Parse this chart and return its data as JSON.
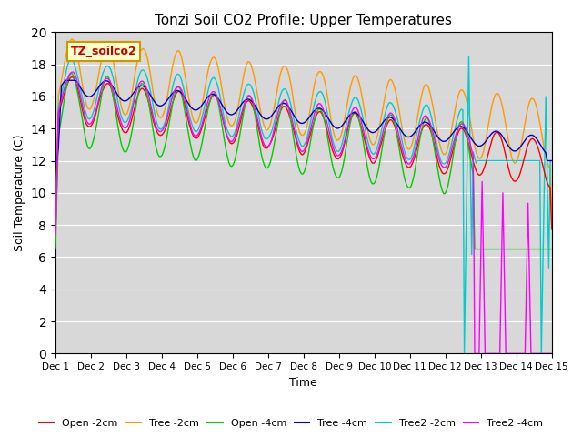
{
  "title": "Tonzi Soil CO2 Profile: Upper Temperatures",
  "ylabel": "Soil Temperature (C)",
  "xlabel": "Time",
  "ylim": [
    0,
    20
  ],
  "plot_bg_color": "#d8d8d8",
  "annotation_text": "TZ_soilco2",
  "annotation_bg": "#ffffcc",
  "annotation_border": "#cc9900",
  "series": {
    "Open -2cm": {
      "color": "#ff0000",
      "lw": 1.0
    },
    "Tree -2cm": {
      "color": "#ff9900",
      "lw": 1.0
    },
    "Open -4cm": {
      "color": "#00cc00",
      "lw": 1.0
    },
    "Tree -4cm": {
      "color": "#0000cc",
      "lw": 1.0
    },
    "Tree2 -2cm": {
      "color": "#00cccc",
      "lw": 1.0
    },
    "Tree2 -4cm": {
      "color": "#ff00ff",
      "lw": 1.0
    }
  },
  "xtick_labels": [
    "Dec 1",
    "Dec 2",
    "Dec 3",
    "Dec 4",
    "Dec 5",
    "Dec 6",
    "Dec 7",
    "Dec 8",
    "Dec 9",
    "Dec 10",
    "Dec 11",
    "Dec 12",
    "Dec 13",
    "Dec 14",
    "Dec 15"
  ],
  "n_points": 336
}
